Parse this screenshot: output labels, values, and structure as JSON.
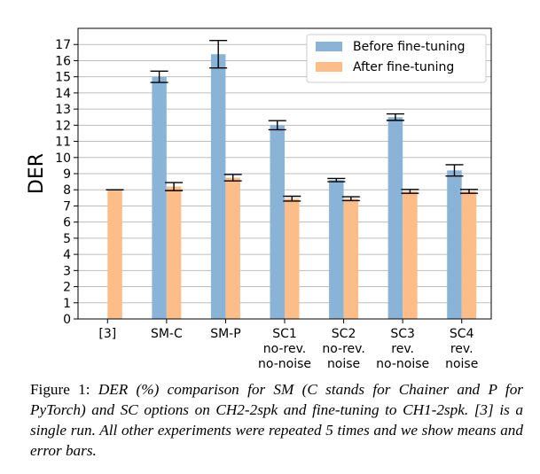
{
  "chart_data": {
    "type": "bar",
    "ylabel": "DER",
    "ylim": [
      0,
      18
    ],
    "yticks": [
      0,
      1,
      2,
      3,
      4,
      5,
      6,
      7,
      8,
      9,
      10,
      11,
      12,
      13,
      14,
      15,
      16,
      17
    ],
    "grid": true,
    "legend_position": "top-right",
    "categories": [
      [
        "[3]"
      ],
      [
        "SM-C"
      ],
      [
        "SM-P"
      ],
      [
        "SC1",
        "no-rev.",
        "no-noise"
      ],
      [
        "SC2",
        "no-rev.",
        "noise"
      ],
      [
        "SC3",
        "rev.",
        "no-noise"
      ],
      [
        "SC4",
        "rev.",
        "noise"
      ]
    ],
    "series": [
      {
        "name": "Before fine-tuning",
        "color": "#8ab4d7",
        "values": [
          0,
          15.0,
          16.4,
          12.0,
          8.6,
          12.5,
          9.2
        ],
        "errors": [
          null,
          0.35,
          0.85,
          0.28,
          0.1,
          0.2,
          0.35
        ]
      },
      {
        "name": "After fine-tuning",
        "color": "#fdbd89",
        "values": [
          8.0,
          8.2,
          8.75,
          7.45,
          7.45,
          7.9,
          7.9
        ],
        "errors": [
          0,
          0.25,
          0.2,
          0.15,
          0.12,
          0.12,
          0.12
        ]
      }
    ]
  },
  "caption": {
    "lead": "Figure 1: ",
    "body": "DER (%) comparison for SM (C stands for Chainer and P for PyTorch) and SC options on CH2-2spk and fine-tuning to CH1-2spk. [3] is a single run. All other experiments were repeated 5 times and we show means and error bars."
  }
}
